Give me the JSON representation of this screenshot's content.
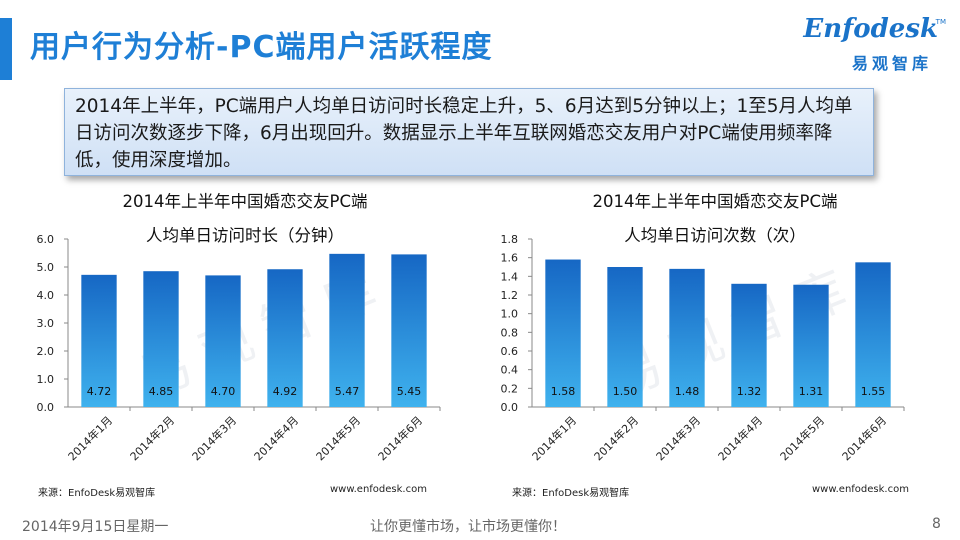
{
  "title": "用户行为分析-PC端用户活跃程度",
  "logo": {
    "name": "Enfodesk",
    "tm": "TM",
    "chinese": "易观智库"
  },
  "summary": "2014年上半年，PC端用户人均单日访问时长稳定上升，5、6月达到5分钟以上；1至5月人均单日访问次数逐步下降，6月出现回升。数据显示上半年互联网婚恋交友用户对PC端使用频率降低，使用深度增加。",
  "watermark": "易观智库",
  "chart_data": [
    {
      "type": "bar",
      "title_line1": "2014年上半年中国婚恋交友PC端",
      "title_line2": "人均单日访问时长（分钟）",
      "categories": [
        "2014年1月",
        "2014年2月",
        "2014年3月",
        "2014年4月",
        "2014年5月",
        "2014年6月"
      ],
      "values": [
        4.72,
        4.85,
        4.7,
        4.92,
        5.47,
        5.45
      ],
      "value_labels": [
        "4.72",
        "4.85",
        "4.70",
        "4.92",
        "5.47",
        "5.45"
      ],
      "ylim": [
        0,
        6
      ],
      "yticks": [
        "0.0",
        "1.0",
        "2.0",
        "3.0",
        "4.0",
        "5.0",
        "6.0"
      ],
      "color": "#1e78cf",
      "grid": false,
      "source": "来源：EnfoDesk易观智库",
      "website": "www.enfodesk.com"
    },
    {
      "type": "bar",
      "title_line1": "2014年上半年中国婚恋交友PC端",
      "title_line2": "人均单日访问次数（次）",
      "categories": [
        "2014年1月",
        "2014年2月",
        "2014年3月",
        "2014年4月",
        "2014年5月",
        "2014年6月"
      ],
      "values": [
        1.58,
        1.5,
        1.48,
        1.32,
        1.31,
        1.55
      ],
      "value_labels": [
        "1.58",
        "1.50",
        "1.48",
        "1.32",
        "1.31",
        "1.55"
      ],
      "ylim": [
        0,
        1.8
      ],
      "yticks": [
        "0.0",
        "0.2",
        "0.4",
        "0.6",
        "0.8",
        "1.0",
        "1.2",
        "1.4",
        "1.6",
        "1.8"
      ],
      "color": "#1e78cf",
      "grid": false,
      "source": "来源：EnfoDesk易观智库",
      "website": "www.enfodesk.com"
    }
  ],
  "footer": {
    "date": "2014年9月15日星期一",
    "slogan": "让你更懂市场，让市场更懂你！",
    "page": "8"
  }
}
